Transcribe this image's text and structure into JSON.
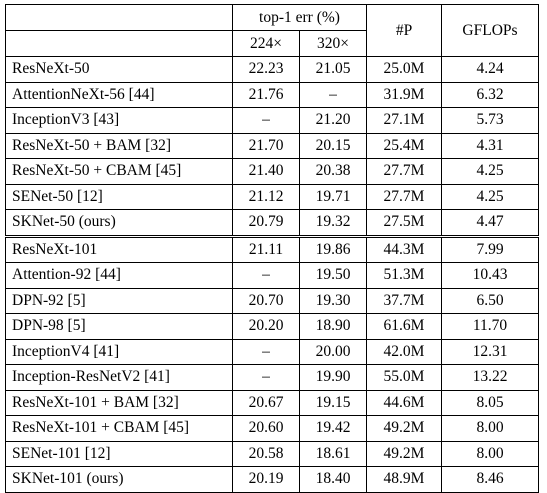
{
  "header": {
    "err_label": "top-1 err (%)",
    "res224": "224×",
    "res320": "320×",
    "params": "#P",
    "gflops": "GFLOPs"
  },
  "group1": [
    {
      "model": "ResNeXt-50",
      "e224": "22.23",
      "e320": "21.05",
      "p": "25.0M",
      "g": "4.24"
    },
    {
      "model": "AttentionNeXt-56 [44]",
      "e224": "21.76",
      "e320": "–",
      "p": "31.9M",
      "g": "6.32"
    },
    {
      "model": "InceptionV3 [43]",
      "e224": "–",
      "e320": "21.20",
      "p": "27.1M",
      "g": "5.73"
    },
    {
      "model": "ResNeXt-50 + BAM [32]",
      "e224": "21.70",
      "e320": "20.15",
      "p": "25.4M",
      "g": "4.31"
    },
    {
      "model": "ResNeXt-50 + CBAM [45]",
      "e224": "21.40",
      "e320": "20.38",
      "p": "27.7M",
      "g": "4.25"
    },
    {
      "model": "SENet-50 [12]",
      "e224": "21.12",
      "e320": "19.71",
      "p": "27.7M",
      "g": "4.25"
    },
    {
      "model": "SKNet-50 (ours)",
      "e224": "20.79",
      "e320": "19.32",
      "p": "27.5M",
      "g": "4.47"
    }
  ],
  "group2": [
    {
      "model": "ResNeXt-101",
      "e224": "21.11",
      "e320": "19.86",
      "p": "44.3M",
      "g": "7.99"
    },
    {
      "model": "Attention-92 [44]",
      "e224": "–",
      "e320": "19.50",
      "p": "51.3M",
      "g": "10.43"
    },
    {
      "model": "DPN-92 [5]",
      "e224": "20.70",
      "e320": "19.30",
      "p": "37.7M",
      "g": "6.50"
    },
    {
      "model": "DPN-98 [5]",
      "e224": "20.20",
      "e320": "18.90",
      "p": "61.6M",
      "g": "11.70"
    },
    {
      "model": "InceptionV4 [41]",
      "e224": "–",
      "e320": "20.00",
      "p": "42.0M",
      "g": "12.31"
    },
    {
      "model": "Inception-ResNetV2 [41]",
      "e224": "–",
      "e320": "19.90",
      "p": "55.0M",
      "g": "13.22"
    },
    {
      "model": "ResNeXt-101 + BAM [32]",
      "e224": "20.67",
      "e320": "19.15",
      "p": "44.6M",
      "g": "8.05"
    },
    {
      "model": "ResNeXt-101 + CBAM [45]",
      "e224": "20.60",
      "e320": "19.42",
      "p": "49.2M",
      "g": "8.00"
    },
    {
      "model": "SENet-101 [12]",
      "e224": "20.58",
      "e320": "18.61",
      "p": "49.2M",
      "g": "8.00"
    },
    {
      "model": "SKNet-101 (ours)",
      "e224": "20.19",
      "e320": "18.40",
      "p": "48.9M",
      "g": "8.46"
    }
  ]
}
